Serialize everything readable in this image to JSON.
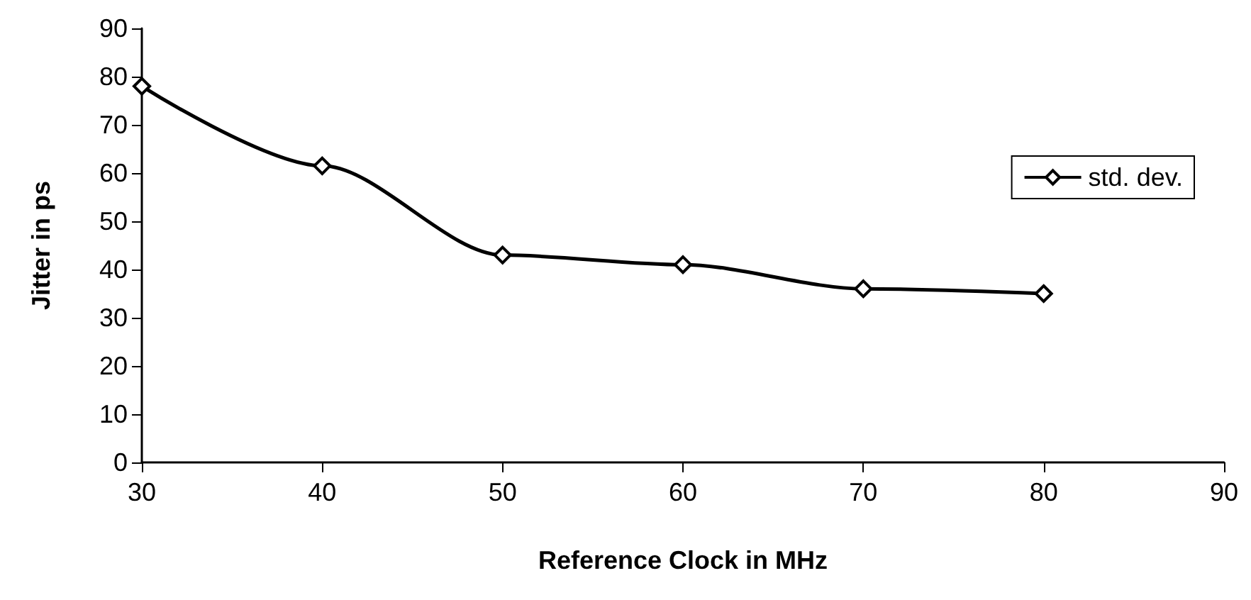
{
  "chart_data": {
    "type": "line",
    "xlabel": "Reference Clock in MHz",
    "ylabel": "Jitter in ps",
    "x": [
      30,
      40,
      50,
      60,
      70,
      80
    ],
    "series": [
      {
        "name": "std. dev.",
        "color": "#000000",
        "values": [
          78,
          61.5,
          43,
          41,
          36,
          35
        ]
      }
    ],
    "xlim": [
      30,
      90
    ],
    "xticks": [
      30,
      40,
      50,
      60,
      70,
      80,
      90
    ],
    "ylim": [
      0,
      90
    ],
    "yticks": [
      0,
      10,
      20,
      30,
      40,
      50,
      60,
      70,
      80,
      90
    ],
    "grid": false,
    "legend": "right",
    "marker": "diamond",
    "line_style": "solid"
  }
}
